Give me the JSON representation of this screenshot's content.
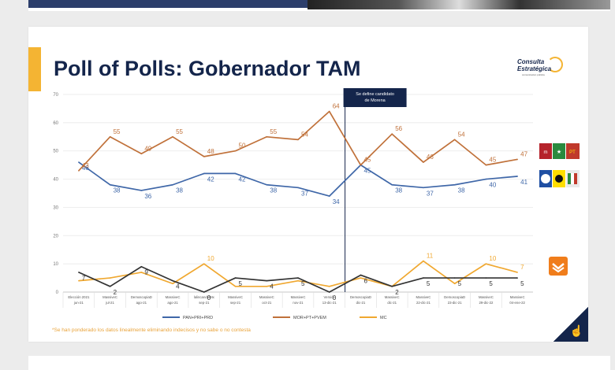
{
  "page": {
    "title": "Poll of Polls: Gobernador TAM",
    "footnote": "*Se han ponderado los datos linealmente eliminando indecisos y no sabe o no contesta",
    "logo_line1": "Consulta",
    "logo_line2": "Estratégica",
    "logo_line3": "comunicacion política",
    "icons": [
      "cursor-hand-icon",
      "morena-pt-logo",
      "pan-pri-prd-logo",
      "mc-logo"
    ]
  },
  "chart_data": {
    "type": "line",
    "ylim": [
      0,
      70
    ],
    "yticks": [
      0,
      10,
      20,
      30,
      40,
      50,
      60,
      70
    ],
    "categories": [
      {
        "line1": "Elección 2021",
        "line2": "jun-21"
      },
      {
        "line1": "MassiveC",
        "line2": "jul-21"
      },
      {
        "line1": "DemoscopiaD",
        "line2": "ago-21"
      },
      {
        "line1": "MassiveC",
        "line2": "ago-21"
      },
      {
        "line1": "lalincandelMx",
        "line2": "sep-21"
      },
      {
        "line1": "MassiveC",
        "line2": "sep-21"
      },
      {
        "line1": "MassiveC",
        "line2": "oct-21"
      },
      {
        "line1": "MassiveC",
        "line2": "nov-21"
      },
      {
        "line1": "Versión",
        "line2": "13-dic-21"
      },
      {
        "line1": "DemoscopiaD",
        "line2": "dic-21"
      },
      {
        "line1": "MassiveC",
        "line2": "dic-21"
      },
      {
        "line1": "MassiveC",
        "line2": "22-dic-21"
      },
      {
        "line1": "DemoscopiaD",
        "line2": "23-dic-21"
      },
      {
        "line1": "MassiveC",
        "line2": "29-dic-22"
      },
      {
        "line1": "MassiveC",
        "line2": "04-ene-22"
      }
    ],
    "series": [
      {
        "name": "PAN+PRI+PRD",
        "color": "#3f67a8",
        "values": [
          46,
          38,
          36,
          38,
          42,
          42,
          38,
          37,
          34,
          45,
          38,
          37,
          38,
          40,
          41
        ],
        "labels": [
          "46",
          "38",
          "36",
          "38",
          "42",
          "42",
          "38",
          "37",
          "34",
          "45",
          "38",
          "37",
          "38",
          "40",
          "41"
        ]
      },
      {
        "name": "MOR+PT+PVEM",
        "color": "#c0713a",
        "values": [
          43,
          55,
          49,
          55,
          48,
          50,
          55,
          54,
          64,
          45,
          56,
          46,
          54,
          45,
          47
        ],
        "labels": [
          "43",
          "55",
          "49",
          "55",
          "48",
          "50",
          "55",
          "54",
          "64",
          "45",
          "56",
          "46",
          "54",
          "45",
          "47"
        ]
      },
      {
        "name": "MC",
        "color": "#f0a830",
        "values": [
          4,
          5,
          7,
          3,
          10,
          2,
          2,
          4,
          2,
          5,
          2,
          11,
          3,
          10,
          7
        ],
        "labels": [
          "",
          "",
          "",
          "",
          "10",
          "",
          "",
          "",
          "",
          "",
          "",
          "11",
          "",
          "10",
          "7"
        ]
      },
      {
        "name": "",
        "color": "#333333",
        "values": [
          7,
          2,
          9,
          4,
          0,
          5,
          4,
          5,
          0,
          6,
          2,
          5,
          5,
          5,
          5
        ],
        "labels": [
          "7",
          "2",
          "9",
          "4",
          "0",
          "5",
          "4",
          "5",
          "0",
          "6",
          "2",
          "5",
          "5",
          "5",
          "5"
        ]
      }
    ],
    "annotation": {
      "text_line1": "Se define candidato",
      "text_line2": "de Morena",
      "at_index": 8.5
    },
    "legend": [
      "PAN+PRI+PRD",
      "MOR+PT+PVEM",
      "MC"
    ],
    "legend_position": "bottom",
    "grid": true
  }
}
